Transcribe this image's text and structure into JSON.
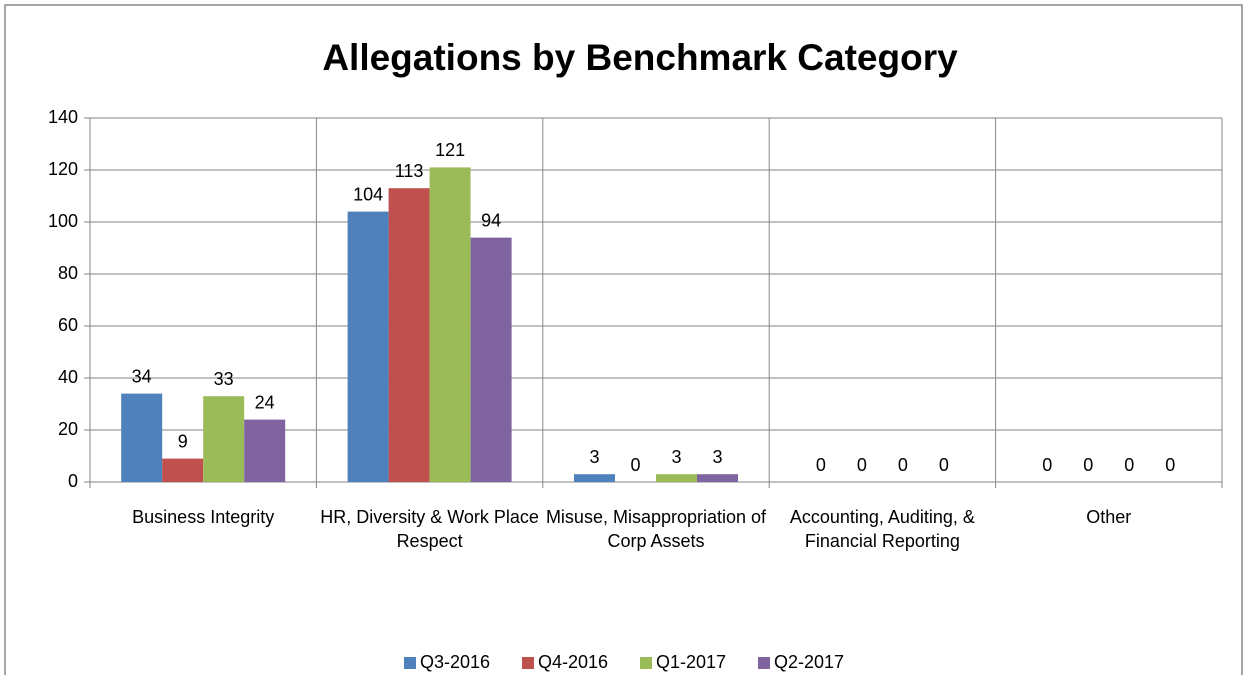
{
  "chart_data": {
    "type": "bar",
    "title": "Allegations by Benchmark Category",
    "categories": [
      "Business Integrity",
      "HR, Diversity & Work Place Respect",
      "Misuse, Misappropriation of Corp Assets",
      "Accounting, Auditing, & Financial Reporting",
      "Other"
    ],
    "series": [
      {
        "name": "Q3-2016",
        "color": "#4f81bd",
        "values": [
          34,
          104,
          3,
          0,
          0
        ]
      },
      {
        "name": "Q4-2016",
        "color": "#c0504d",
        "values": [
          9,
          113,
          0,
          0,
          0
        ]
      },
      {
        "name": "Q1-2017",
        "color": "#9bbb59",
        "values": [
          33,
          121,
          3,
          0,
          0
        ]
      },
      {
        "name": "Q2-2017",
        "color": "#8064a2",
        "values": [
          24,
          94,
          3,
          0,
          0
        ]
      }
    ],
    "ylim": [
      0,
      140
    ],
    "yticks": [
      0,
      20,
      40,
      60,
      80,
      100,
      120,
      140
    ],
    "grid": true,
    "legend": "bottom"
  }
}
